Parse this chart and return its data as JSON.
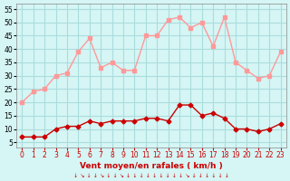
{
  "hours": [
    0,
    1,
    2,
    3,
    4,
    5,
    6,
    7,
    8,
    9,
    10,
    11,
    12,
    13,
    14,
    15,
    16,
    17,
    18,
    19,
    20,
    21,
    22,
    23
  ],
  "wind_mean": [
    7,
    7,
    7,
    10,
    11,
    11,
    13,
    12,
    13,
    13,
    13,
    14,
    14,
    13,
    19,
    19,
    15,
    16,
    14,
    10,
    10,
    9,
    10,
    12
  ],
  "wind_gust": [
    20,
    24,
    25,
    30,
    31,
    39,
    44,
    33,
    35,
    32,
    32,
    45,
    45,
    51,
    52,
    48,
    50,
    41,
    52,
    35,
    32,
    29,
    30,
    39
  ],
  "bg_color": "#d6f5f5",
  "grid_color": "#aadddd",
  "mean_color": "#cc0000",
  "gust_color": "#ff9999",
  "xlabel": "Vent moyen/en rafales ( km/h )",
  "xlabel_color": "#cc0000",
  "yticks": [
    5,
    10,
    15,
    20,
    25,
    30,
    35,
    40,
    45,
    50,
    55
  ],
  "ylim": [
    3,
    57
  ],
  "xlim": [
    -0.5,
    23.5
  ]
}
